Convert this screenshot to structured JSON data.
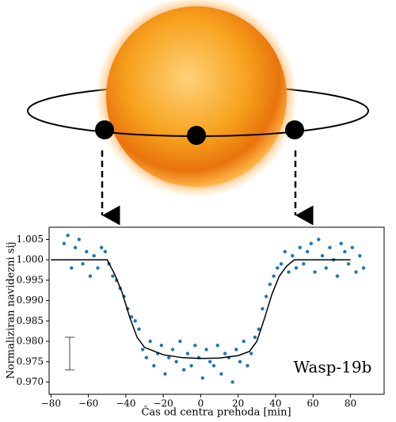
{
  "chart_data": {
    "type": "scatter",
    "xlabel": "Čas od centra prehoda [min]",
    "ylabel": "Normaliziran navidezni sij",
    "annotation": "Wasp-19b",
    "xlim": [
      -81,
      98
    ],
    "ylim": [
      0.967,
      1.008
    ],
    "xticks": [
      {
        "value": -80,
        "label": "−80"
      },
      {
        "value": -60,
        "label": "−60"
      },
      {
        "value": -40,
        "label": "−40"
      },
      {
        "value": -20,
        "label": "−20"
      },
      0,
      20,
      40,
      60,
      80
    ],
    "yticks": [
      {
        "value": 0.97,
        "label": "0.970"
      },
      {
        "value": 0.975,
        "label": "0.975"
      },
      {
        "value": 0.98,
        "label": "0.980"
      },
      {
        "value": 0.985,
        "label": "0.985"
      },
      {
        "value": 0.99,
        "label": "0.990"
      },
      {
        "value": 0.995,
        "label": "0.995"
      },
      {
        "value": 1.0,
        "label": "1.000"
      },
      {
        "value": 1.005,
        "label": "1.005"
      }
    ],
    "scatter": {
      "color": "#1f77b4",
      "x": [
        -73,
        -71,
        -69,
        -67,
        -65,
        -63,
        -61,
        -59,
        -57,
        -55,
        -53,
        -51,
        -49,
        -47,
        -45,
        -43,
        -41,
        -39,
        -37,
        -35,
        -33,
        -31,
        -29,
        -27,
        -25,
        -23,
        -21,
        -19,
        -17,
        -15,
        -13,
        -11,
        -9,
        -7,
        -5,
        -3,
        -1,
        1,
        3,
        5,
        7,
        9,
        11,
        13,
        15,
        17,
        19,
        21,
        23,
        25,
        27,
        29,
        31,
        33,
        35,
        37,
        39,
        41,
        43,
        45,
        47,
        49,
        51,
        53,
        55,
        57,
        59,
        61,
        63,
        65,
        67,
        69,
        71,
        73,
        75,
        77,
        79,
        81,
        83,
        85,
        87
      ],
      "values": [
        1.004,
        1.006,
        0.998,
        1.003,
        1.005,
        0.999,
        1.002,
        0.996,
        1.001,
        0.998,
        1.003,
        1.002,
        0.999,
        0.996,
        0.995,
        0.993,
        0.991,
        0.988,
        0.986,
        0.985,
        0.983,
        0.978,
        0.976,
        0.98,
        0.974,
        0.977,
        0.979,
        0.972,
        0.976,
        0.978,
        0.975,
        0.98,
        0.973,
        0.977,
        0.974,
        0.979,
        0.976,
        0.971,
        0.978,
        0.975,
        0.974,
        0.979,
        0.972,
        0.977,
        0.976,
        0.97,
        0.978,
        0.975,
        0.98,
        0.974,
        0.977,
        0.981,
        0.983,
        0.988,
        0.991,
        0.994,
        0.996,
        0.998,
        0.999,
        1.002,
        0.997,
        1.001,
        0.998,
        1.003,
        0.999,
        1.002,
        1.004,
        0.997,
        1.005,
        1.001,
        0.998,
        1.003,
        1.0,
        0.996,
        1.004,
        1.002,
        0.999,
        1.003,
        0.997,
        1.001,
        0.998
      ]
    },
    "model": {
      "color": "#000000",
      "x": [
        -80,
        -50,
        -46,
        -42,
        -38,
        -34,
        -30,
        -20,
        -10,
        0,
        10,
        20,
        26,
        30,
        34,
        38,
        42,
        46,
        50,
        80
      ],
      "values": [
        1.0,
        1.0,
        0.9965,
        0.992,
        0.986,
        0.981,
        0.9785,
        0.9767,
        0.976,
        0.9758,
        0.9759,
        0.9765,
        0.9775,
        0.98,
        0.9855,
        0.9915,
        0.996,
        0.9985,
        1.0,
        1.0
      ]
    },
    "error_bar": {
      "x": -70,
      "y": 0.977,
      "error": 0.004
    }
  }
}
